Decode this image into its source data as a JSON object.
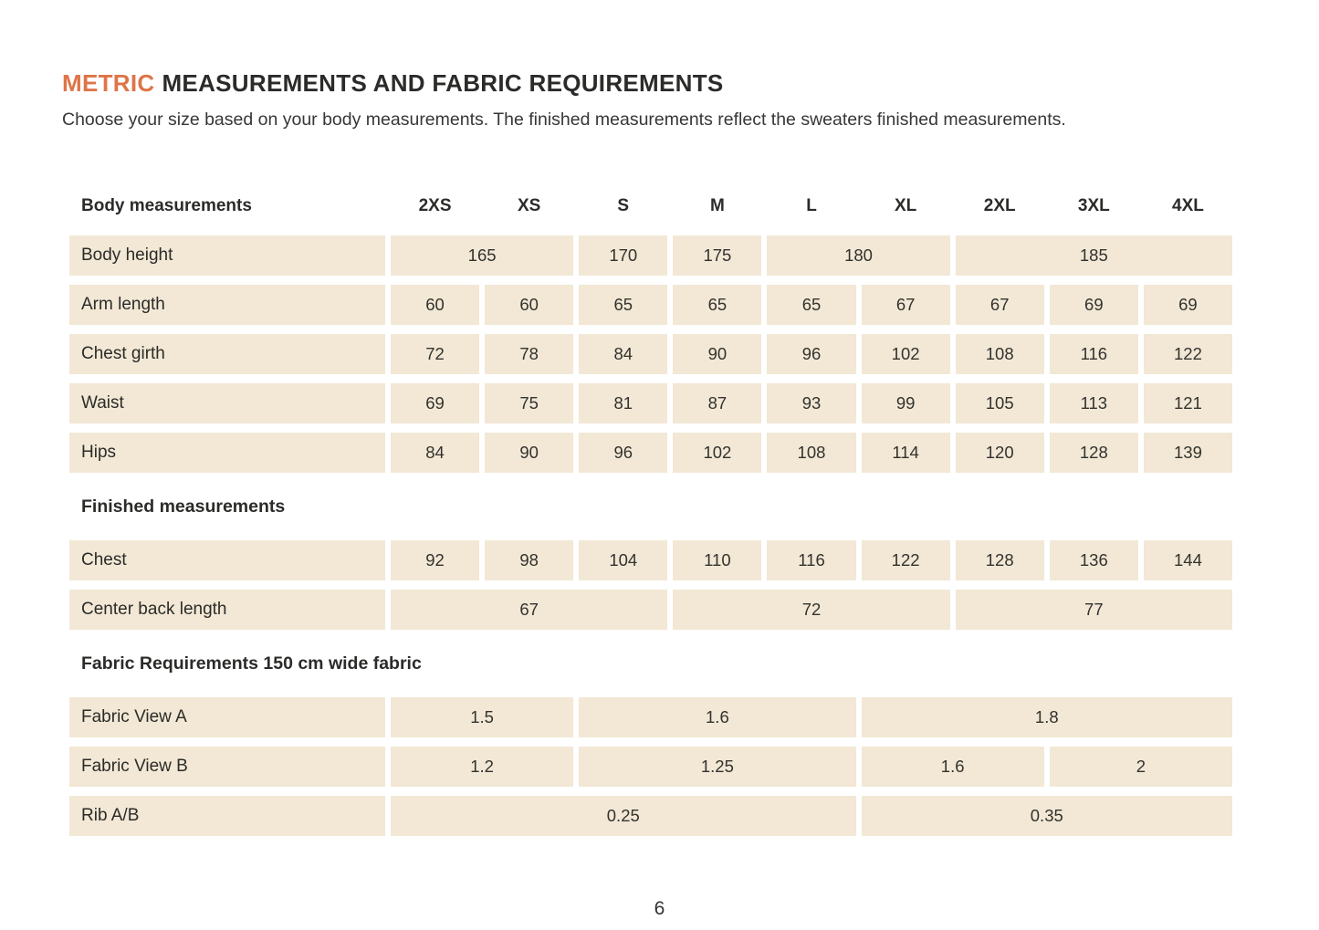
{
  "document": {
    "title": {
      "accent": "METRIC",
      "rest": "MEASUREMENTS AND FABRIC REQUIREMENTS"
    },
    "intro": "Choose your size based on your body measurements. The finished measurements reflect the sweaters finished measurements.",
    "page_number": "6"
  },
  "colors": {
    "accent": "#de7548",
    "cell_background": "#f2e8d5",
    "text": "#2b2b29"
  },
  "table": {
    "column_header_label": "Body measurements",
    "size_columns": [
      "2XS",
      "XS",
      "S",
      "M",
      "L",
      "XL",
      "2XL",
      "3XL",
      "4XL"
    ],
    "sections": [
      {
        "heading": "",
        "rows": [
          {
            "label": "Body height",
            "cells": [
              {
                "value": "165",
                "span": 2
              },
              {
                "value": "170",
                "span": 1
              },
              {
                "value": "175",
                "span": 1
              },
              {
                "value": "180",
                "span": 2
              },
              {
                "value": "185",
                "span": 3
              }
            ]
          },
          {
            "label": "Arm length",
            "cells": [
              {
                "value": "60",
                "span": 1
              },
              {
                "value": "60",
                "span": 1
              },
              {
                "value": "65",
                "span": 1
              },
              {
                "value": "65",
                "span": 1
              },
              {
                "value": "65",
                "span": 1
              },
              {
                "value": "67",
                "span": 1
              },
              {
                "value": "67",
                "span": 1
              },
              {
                "value": "69",
                "span": 1
              },
              {
                "value": "69",
                "span": 1
              }
            ]
          },
          {
            "label": "Chest girth",
            "cells": [
              {
                "value": "72",
                "span": 1
              },
              {
                "value": "78",
                "span": 1
              },
              {
                "value": "84",
                "span": 1
              },
              {
                "value": "90",
                "span": 1
              },
              {
                "value": "96",
                "span": 1
              },
              {
                "value": "102",
                "span": 1
              },
              {
                "value": "108",
                "span": 1
              },
              {
                "value": "116",
                "span": 1
              },
              {
                "value": "122",
                "span": 1
              }
            ]
          },
          {
            "label": "Waist",
            "cells": [
              {
                "value": "69",
                "span": 1
              },
              {
                "value": "75",
                "span": 1
              },
              {
                "value": "81",
                "span": 1
              },
              {
                "value": "87",
                "span": 1
              },
              {
                "value": "93",
                "span": 1
              },
              {
                "value": "99",
                "span": 1
              },
              {
                "value": "105",
                "span": 1
              },
              {
                "value": "113",
                "span": 1
              },
              {
                "value": "121",
                "span": 1
              }
            ]
          },
          {
            "label": "Hips",
            "cells": [
              {
                "value": "84",
                "span": 1
              },
              {
                "value": "90",
                "span": 1
              },
              {
                "value": "96",
                "span": 1
              },
              {
                "value": "102",
                "span": 1
              },
              {
                "value": "108",
                "span": 1
              },
              {
                "value": "114",
                "span": 1
              },
              {
                "value": "120",
                "span": 1
              },
              {
                "value": "128",
                "span": 1
              },
              {
                "value": "139",
                "span": 1
              }
            ]
          }
        ]
      },
      {
        "heading": "Finished measurements",
        "rows": [
          {
            "label": "Chest",
            "cells": [
              {
                "value": "92",
                "span": 1
              },
              {
                "value": "98",
                "span": 1
              },
              {
                "value": "104",
                "span": 1
              },
              {
                "value": "110",
                "span": 1
              },
              {
                "value": "116",
                "span": 1
              },
              {
                "value": "122",
                "span": 1
              },
              {
                "value": "128",
                "span": 1
              },
              {
                "value": "136",
                "span": 1
              },
              {
                "value": "144",
                "span": 1
              }
            ]
          },
          {
            "label": "Center back length",
            "cells": [
              {
                "value": "67",
                "span": 3
              },
              {
                "value": "72",
                "span": 3
              },
              {
                "value": "77",
                "span": 3
              }
            ]
          }
        ]
      },
      {
        "heading": "Fabric Requirements 150 cm wide fabric",
        "rows": [
          {
            "label": "Fabric View A",
            "cells": [
              {
                "value": "1.5",
                "span": 2
              },
              {
                "value": "1.6",
                "span": 3
              },
              {
                "value": "1.8",
                "span": 4
              }
            ]
          },
          {
            "label": "Fabric View B",
            "cells": [
              {
                "value": "1.2",
                "span": 2
              },
              {
                "value": "1.25",
                "span": 3
              },
              {
                "value": "1.6",
                "span": 2
              },
              {
                "value": "2",
                "span": 2
              }
            ]
          },
          {
            "label": "Rib A/B",
            "cells": [
              {
                "value": "0.25",
                "span": 5
              },
              {
                "value": "0.35",
                "span": 4
              }
            ]
          }
        ]
      }
    ]
  }
}
